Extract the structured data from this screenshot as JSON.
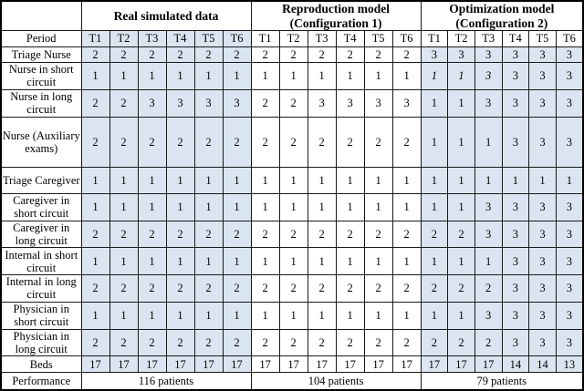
{
  "table": {
    "corner_label": "",
    "column_groups": [
      {
        "title": "Real simulated data",
        "subtitle": ""
      },
      {
        "title": "Reproduction model",
        "subtitle": "(Configuration 1)"
      },
      {
        "title": "Optimization model",
        "subtitle": "(Configuration 2)"
      }
    ],
    "period_row": {
      "label": "Period",
      "periods": [
        "T1",
        "T2",
        "T3",
        "T4",
        "T5",
        "T6"
      ]
    },
    "data_rows": [
      {
        "label": "Triage Nurse",
        "real": [
          "2",
          "2",
          "2",
          "2",
          "2",
          "2"
        ],
        "reproduction": [
          "2",
          "2",
          "2",
          "2",
          "2",
          "2"
        ],
        "optimization": [
          "3",
          "3",
          "3",
          "3",
          "3",
          "3"
        ]
      },
      {
        "label": "Nurse in short circuit",
        "real": [
          "1",
          "1",
          "1",
          "1",
          "1",
          "1"
        ],
        "reproduction": [
          "1",
          "1",
          "1",
          "1",
          "1",
          "1"
        ],
        "optimization": [
          "1",
          "1",
          "3",
          "3",
          "3",
          "3"
        ],
        "optimization_italic": [
          true,
          true,
          true,
          false,
          false,
          false
        ]
      },
      {
        "label": "Nurse in long circuit",
        "real": [
          "2",
          "2",
          "3",
          "3",
          "3",
          "3"
        ],
        "reproduction": [
          "2",
          "2",
          "3",
          "3",
          "3",
          "3"
        ],
        "optimization": [
          "1",
          "1",
          "3",
          "3",
          "3",
          "3"
        ]
      },
      {
        "label": "Nurse (Auxiliary exams)",
        "real": [
          "2",
          "2",
          "2",
          "2",
          "2",
          "2"
        ],
        "reproduction": [
          "2",
          "2",
          "2",
          "2",
          "2",
          "2"
        ],
        "optimization": [
          "1",
          "1",
          "1",
          "3",
          "3",
          "3"
        ]
      },
      {
        "label": "Triage Caregiver",
        "real": [
          "1",
          "1",
          "1",
          "1",
          "1",
          "1"
        ],
        "reproduction": [
          "1",
          "1",
          "1",
          "1",
          "1",
          "1"
        ],
        "optimization": [
          "1",
          "1",
          "1",
          "1",
          "1",
          "1"
        ]
      },
      {
        "label": "Caregiver in short circuit",
        "real": [
          "1",
          "1",
          "1",
          "1",
          "1",
          "1"
        ],
        "reproduction": [
          "1",
          "1",
          "1",
          "1",
          "1",
          "1"
        ],
        "optimization": [
          "1",
          "1",
          "3",
          "3",
          "3",
          "3"
        ]
      },
      {
        "label": "Caregiver in long circuit",
        "real": [
          "2",
          "2",
          "2",
          "2",
          "2",
          "2"
        ],
        "reproduction": [
          "2",
          "2",
          "2",
          "2",
          "2",
          "2"
        ],
        "optimization": [
          "2",
          "2",
          "3",
          "3",
          "3",
          "3"
        ]
      },
      {
        "label": "Internal in short circuit",
        "real": [
          "1",
          "1",
          "1",
          "1",
          "1",
          "1"
        ],
        "reproduction": [
          "1",
          "1",
          "1",
          "1",
          "1",
          "1"
        ],
        "optimization": [
          "1",
          "1",
          "1",
          "3",
          "3",
          "3"
        ]
      },
      {
        "label": "Internal in long circuit",
        "real": [
          "2",
          "2",
          "2",
          "2",
          "2",
          "2"
        ],
        "reproduction": [
          "2",
          "2",
          "2",
          "2",
          "2",
          "2"
        ],
        "optimization": [
          "2",
          "2",
          "2",
          "3",
          "3",
          "3"
        ]
      },
      {
        "label": "Physician in short circuit",
        "real": [
          "1",
          "1",
          "1",
          "1",
          "1",
          "1"
        ],
        "reproduction": [
          "1",
          "1",
          "1",
          "1",
          "1",
          "1"
        ],
        "optimization": [
          "1",
          "1",
          "3",
          "3",
          "3",
          "3"
        ]
      },
      {
        "label": "Physician in long circuit",
        "real": [
          "2",
          "2",
          "2",
          "2",
          "2",
          "2"
        ],
        "reproduction": [
          "2",
          "2",
          "2",
          "2",
          "2",
          "2"
        ],
        "optimization": [
          "2",
          "2",
          "2",
          "3",
          "3",
          "3"
        ]
      },
      {
        "label": "Beds",
        "real": [
          "17",
          "17",
          "17",
          "17",
          "17",
          "17"
        ],
        "reproduction": [
          "17",
          "17",
          "17",
          "17",
          "17",
          "17"
        ],
        "optimization": [
          "17",
          "17",
          "17",
          "14",
          "14",
          "13"
        ]
      }
    ],
    "performance_row": {
      "label": "Performance",
      "values": [
        "116 patients",
        "104 patients",
        "79 patients"
      ]
    },
    "colors": {
      "shaded_cell": "#dbe5f1",
      "border": "#1a1a1a",
      "background": "#ffffff",
      "text": "#000000"
    }
  }
}
